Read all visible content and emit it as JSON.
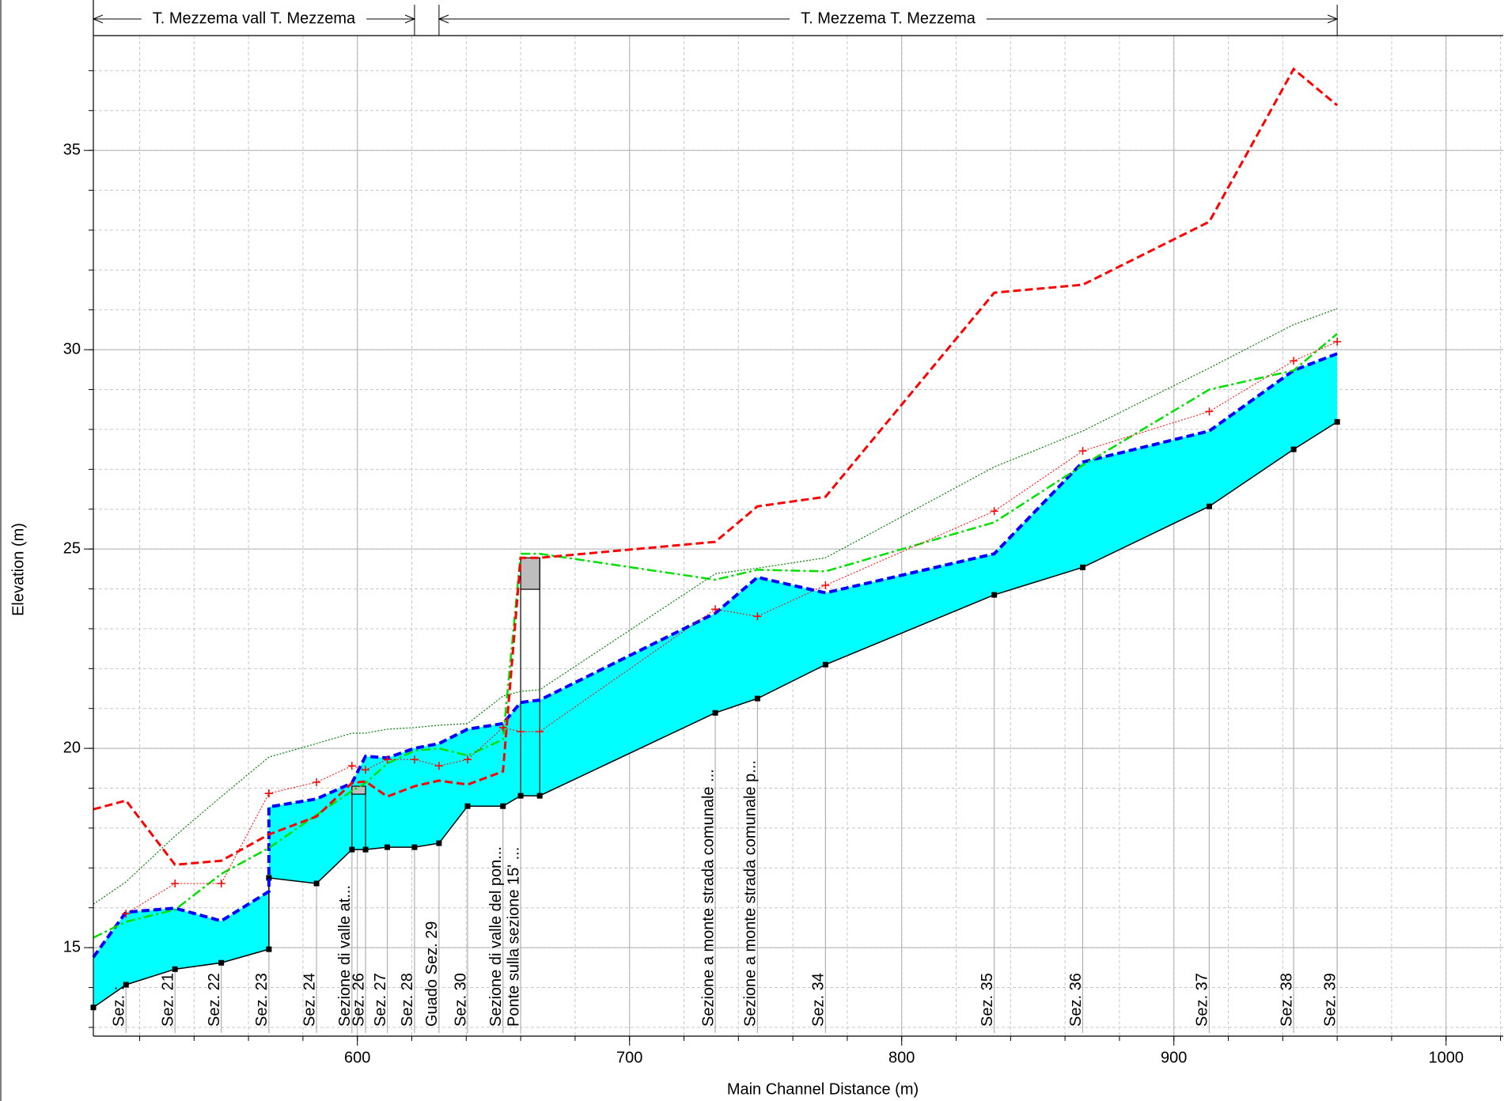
{
  "chart_data": {
    "type": "line",
    "xlabel": "Main Channel Distance (m)",
    "ylabel": "Elevation (m)",
    "xlim": [
      503,
      1021
    ],
    "ylim": [
      12.78,
      37.88
    ],
    "xticks": [
      600,
      700,
      800,
      900,
      1000
    ],
    "yticks": [
      15,
      20,
      25,
      30,
      35
    ],
    "xminor_step": 20,
    "yminor_step": 1,
    "grid": true,
    "x": [
      503,
      515,
      533,
      550,
      567.5,
      567.5,
      585,
      598,
      603,
      611,
      621,
      630,
      640.5,
      653.5,
      660,
      667,
      731.5,
      747,
      772,
      834,
      866.5,
      913,
      944,
      960
    ],
    "series": [
      {
        "color": "#000000",
        "style": "solid",
        "width": 1.5,
        "marker": "square",
        "fill_below": false,
        "values": [
          13.5,
          14.07,
          14.46,
          14.62,
          14.96,
          16.75,
          16.61,
          17.46,
          17.46,
          17.52,
          17.52,
          17.62,
          18.55,
          18.55,
          18.81,
          18.81,
          20.89,
          21.25,
          22.1,
          23.85,
          24.54,
          26.07,
          27.5,
          28.19
        ]
      },
      {
        "color": "#0000ff",
        "style": "dashed",
        "width": 4,
        "marker": "none",
        "fill_color": "#00ffff",
        "values": [
          14.76,
          15.89,
          15.99,
          15.67,
          16.41,
          18.53,
          18.73,
          19.13,
          19.8,
          19.76,
          20.0,
          20.12,
          20.48,
          20.62,
          21.15,
          21.21,
          23.39,
          24.29,
          23.9,
          24.88,
          27.18,
          27.96,
          29.48,
          29.9
        ]
      },
      {
        "color": "#00e000",
        "style": "dashdot",
        "width": 2.5,
        "marker": "none",
        "values": [
          15.25,
          15.65,
          15.95,
          16.85,
          17.5,
          17.5,
          18.33,
          18.93,
          19.13,
          19.62,
          19.94,
          20.0,
          19.82,
          20.22,
          24.88,
          24.88,
          24.23,
          24.48,
          24.44,
          25.67,
          27.1,
          29.0,
          29.48,
          30.4
        ]
      },
      {
        "color": "#ff0000",
        "style": "dotted",
        "width": 1,
        "marker": "plus",
        "values": [
          null,
          15.85,
          16.61,
          16.61,
          18.87,
          18.87,
          19.15,
          19.56,
          19.46,
          19.72,
          19.72,
          19.56,
          19.72,
          20.52,
          20.42,
          20.42,
          23.49,
          23.31,
          24.09,
          25.95,
          27.46,
          28.45,
          29.72,
          30.2
        ]
      },
      {
        "color": "#ff0000",
        "style": "dashed",
        "width": 3,
        "marker": "none",
        "values": [
          18.47,
          18.69,
          17.08,
          17.18,
          17.84,
          17.84,
          18.29,
          19.13,
          19.17,
          18.79,
          19.05,
          19.19,
          19.09,
          19.42,
          24.78,
          24.78,
          25.18,
          26.07,
          26.31,
          31.43,
          31.63,
          33.21,
          37.04,
          36.13
        ]
      },
      {
        "color": "#008000",
        "style": "dotted",
        "width": 1.2,
        "marker": "none",
        "values": [
          16.09,
          16.65,
          17.8,
          18.79,
          19.78,
          19.78,
          20.12,
          20.38,
          20.38,
          20.48,
          20.52,
          20.58,
          20.62,
          21.31,
          21.43,
          21.47,
          24.38,
          24.52,
          24.78,
          27.06,
          27.96,
          29.54,
          30.63,
          31.03
        ]
      }
    ],
    "sections": [
      {
        "x": 515,
        "label": "Sez. :"
      },
      {
        "x": 533,
        "label": "Sez. 21"
      },
      {
        "x": 550,
        "label": "Sez. 22"
      },
      {
        "x": 567.5,
        "label": "Sez. 23"
      },
      {
        "x": 585,
        "label": "Sez. 24"
      },
      {
        "x": 598,
        "label": "Sezione di valle at..."
      },
      {
        "x": 603,
        "label": "Sez. 26"
      },
      {
        "x": 611,
        "label": "Sez. 27"
      },
      {
        "x": 621,
        "label": "Sez. 28"
      },
      {
        "x": 630,
        "label": "Guado Sez. 29"
      },
      {
        "x": 640.5,
        "label": "Sez. 30"
      },
      {
        "x": 653.5,
        "label": "Sezione di valle del pon..."
      },
      {
        "x": 660,
        "label": "Ponte sulla sezione 15' ..."
      },
      {
        "x": 731.5,
        "label": "Sezione a monte strada comunale ..."
      },
      {
        "x": 747,
        "label": "Sezione a monte strada comunale p..."
      },
      {
        "x": 772,
        "label": "Sez. 34"
      },
      {
        "x": 834,
        "label": "Sez. 35"
      },
      {
        "x": 866.5,
        "label": "Sez. 36"
      },
      {
        "x": 913,
        "label": "Sez. 37"
      },
      {
        "x": 944,
        "label": "Sez. 38"
      },
      {
        "x": 960,
        "label": "Sez. 39"
      }
    ],
    "bridges": [
      {
        "x": [
          660,
          667
        ],
        "low": 23.99,
        "high": 24.78
      },
      {
        "x": [
          598,
          603
        ],
        "low": 18.85,
        "high": 19.05
      }
    ],
    "reaches": [
      {
        "label": "T. Mezzema  vall T. Mezzema",
        "x": [
          503,
          621
        ]
      },
      {
        "label": "T. Mezzema T. Mezzema",
        "x": [
          630,
          960
        ]
      }
    ]
  }
}
